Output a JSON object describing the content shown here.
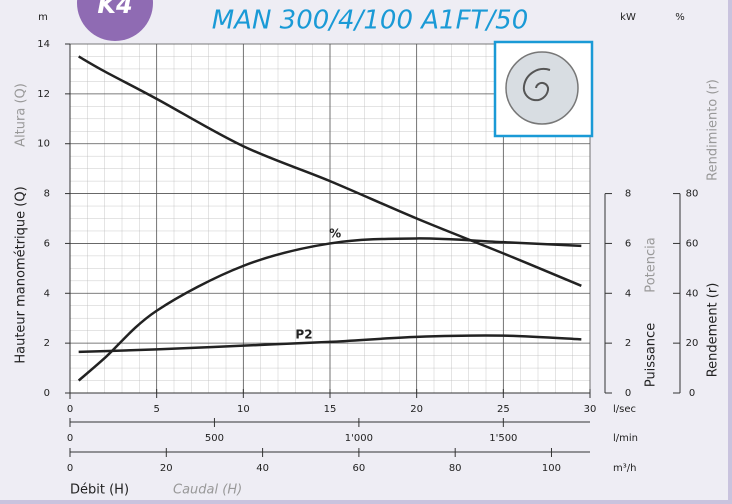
{
  "chart_data": {
    "type": "line",
    "badge": "K4",
    "title": "MAN 300/4/100 A1FT/50",
    "x": [
      0.5,
      2,
      5,
      10,
      15,
      20,
      25,
      29.5
    ],
    "xlim": [
      0,
      30
    ],
    "xticks": [
      0,
      5,
      10,
      15,
      20,
      25,
      30
    ],
    "x_unit": "l/sec",
    "x2lim": [
      0,
      1800
    ],
    "x2ticks": [
      0,
      500,
      {
        "value": 1000,
        "label": "1'000"
      },
      {
        "value": 1500,
        "label": "1'500"
      }
    ],
    "x2_unit": "l/min",
    "x3lim": [
      0,
      108
    ],
    "x3ticks": [
      0,
      20,
      40,
      60,
      80,
      100
    ],
    "x3_unit": "m³/h",
    "xlabel": "Débit (H)",
    "xlabel_alt": "Caudal (H)",
    "ylim": [
      0,
      14
    ],
    "yticks": [
      0,
      2,
      4,
      6,
      8,
      10,
      12,
      14
    ],
    "y_unit": "m",
    "ylabel": "Hauteur manométrique (Q)",
    "ylabel_alt": "Altura (Q)",
    "y2lim": [
      0,
      14
    ],
    "y2ticks": [
      0,
      2,
      4,
      6,
      8
    ],
    "y2_unit": "kW",
    "y2label": "Puissance",
    "y2label_alt": "Potencia",
    "y3lim": [
      0,
      140
    ],
    "y3ticks": [
      0,
      20,
      40,
      60,
      80
    ],
    "y3_unit": "%",
    "y3label": "Rendement (r)",
    "y3label_alt": "Rendimiento (r)",
    "grid": true,
    "series": [
      {
        "color": "#222222",
        "values": [
          13.5,
          12.9,
          11.8,
          9.9,
          8.5,
          7.0,
          5.6,
          4.3
        ]
      },
      {
        "name": "%",
        "axis": "y3",
        "color": "#222222",
        "values": [
          5,
          14,
          33,
          51,
          60,
          62,
          60.5,
          59
        ]
      },
      {
        "name": "P2",
        "axis": "y2",
        "color": "#222222",
        "values": [
          1.65,
          1.68,
          1.75,
          1.9,
          2.05,
          2.25,
          2.3,
          2.15
        ]
      }
    ]
  }
}
